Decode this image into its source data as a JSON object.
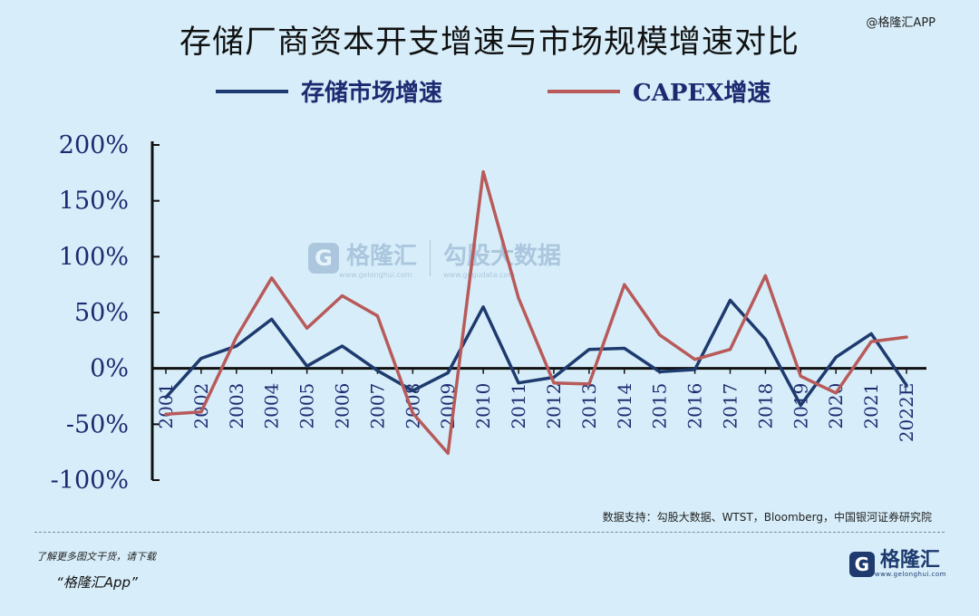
{
  "title": "存储厂商资本开支增速与市场规模增速对比",
  "watermark_top": "@格隆汇APP",
  "center_watermark": {
    "brand": "格隆汇",
    "brand_sub": "www.gelonghui.com",
    "partner": "勾股大数据",
    "partner_sub": "www.gogudata.com"
  },
  "source": "数据支持：勾股大数据、WTST，Bloomberg，中国银河证券研究院",
  "footer": {
    "note": "了解更多图文干货，请下载",
    "app": "“格隆汇App”"
  },
  "logo": {
    "text": "格隆汇",
    "sub": "www.gelonghui.com"
  },
  "colors": {
    "market": "#1e3a6e",
    "capex": "#b85a5a",
    "axis": "#111111",
    "tick_text": "#1e2a70"
  },
  "chart_data": {
    "type": "line",
    "categories": [
      "2001",
      "2002",
      "2003",
      "2004",
      "2005",
      "2006",
      "2007",
      "2008",
      "2009",
      "2010",
      "2011",
      "2012",
      "2013",
      "2014",
      "2015",
      "2016",
      "2017",
      "2018",
      "2019",
      "2020",
      "2021",
      "2022E"
    ],
    "series": [
      {
        "name": "存储市场增速",
        "values": [
          -26,
          9,
          20,
          44,
          2,
          20,
          -2,
          -20,
          -4,
          55,
          -13,
          -8,
          17,
          18,
          -3,
          -1,
          61,
          26,
          -33,
          10,
          31,
          -15
        ]
      },
      {
        "name": "CAPEX增速",
        "values": [
          -41,
          -39,
          28,
          81,
          36,
          65,
          47,
          -40,
          -76,
          176,
          63,
          -13,
          -14,
          75,
          30,
          8,
          17,
          83,
          -7,
          -22,
          24,
          28
        ]
      }
    ],
    "yticks": [
      "200%",
      "150%",
      "100%",
      "50%",
      "0%",
      "-50%",
      "-100%"
    ],
    "ylim": [
      -100,
      200
    ],
    "legend_position": "top"
  }
}
